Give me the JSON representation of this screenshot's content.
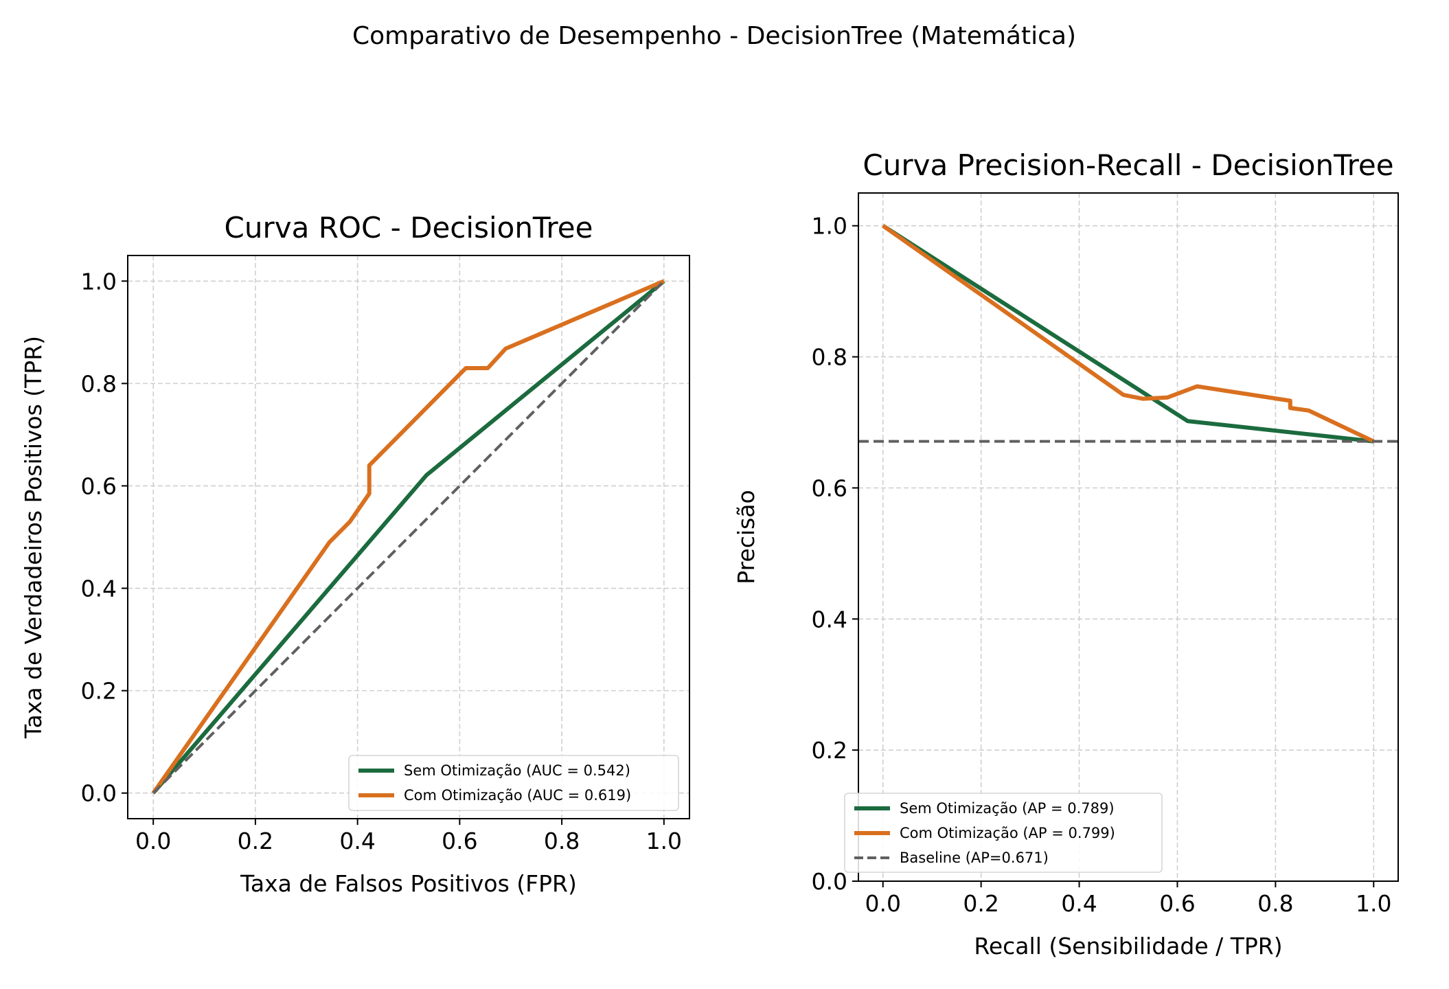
{
  "suptitle": "Comparativo de Desempenho - DecisionTree (Matemática)",
  "colors": {
    "sem": "#1b6b3e",
    "com": "#d9701f",
    "baseline": "#606060",
    "grid": "#cfcfcf"
  },
  "chart_data": [
    {
      "type": "line",
      "title": "Curva ROC - DecisionTree",
      "xlabel": "Taxa de Falsos Positivos (FPR)",
      "ylabel": "Taxa de Verdadeiros Positivos (TPR)",
      "xlim": [
        -0.05,
        1.05
      ],
      "ylim": [
        -0.05,
        1.05
      ],
      "xticks": [
        0.0,
        0.2,
        0.4,
        0.6,
        0.8,
        1.0
      ],
      "yticks": [
        0.0,
        0.2,
        0.4,
        0.6,
        0.8,
        1.0
      ],
      "xtick_labels": [
        "0.0",
        "0.2",
        "0.4",
        "0.6",
        "0.8",
        "1.0"
      ],
      "ytick_labels": [
        "0.0",
        "0.2",
        "0.4",
        "0.6",
        "0.8",
        "1.0"
      ],
      "grid": true,
      "legend_position": "lower-right",
      "series": [
        {
          "name": "Sem Otimização (AUC = 0.542)",
          "color": "#1b6b3e",
          "style": "solid",
          "x": [
            0.0,
            0.535,
            1.0
          ],
          "y": [
            0.0,
            0.621,
            1.0
          ]
        },
        {
          "name": "Com Otimização (AUC = 0.619)",
          "color": "#d9701f",
          "style": "solid",
          "x": [
            0.0,
            0.345,
            0.385,
            0.423,
            0.423,
            0.612,
            0.655,
            0.69,
            1.0
          ],
          "y": [
            0.0,
            0.49,
            0.53,
            0.585,
            0.64,
            0.83,
            0.83,
            0.868,
            1.0
          ]
        },
        {
          "name": "",
          "color": "#606060",
          "style": "dashed",
          "x": [
            0.0,
            1.0
          ],
          "y": [
            0.0,
            1.0
          ]
        }
      ]
    },
    {
      "type": "line",
      "title": "Curva Precision-Recall - DecisionTree",
      "xlabel": "Recall (Sensibilidade / TPR)",
      "ylabel": "Precisão",
      "xlim": [
        -0.05,
        1.05
      ],
      "ylim": [
        0.0,
        1.05
      ],
      "xticks": [
        0.0,
        0.2,
        0.4,
        0.6,
        0.8,
        1.0
      ],
      "yticks": [
        0.0,
        0.2,
        0.4,
        0.6,
        0.8,
        1.0
      ],
      "xtick_labels": [
        "0.0",
        "0.2",
        "0.4",
        "0.6",
        "0.8",
        "1.0"
      ],
      "ytick_labels": [
        "0.0",
        "0.2",
        "0.4",
        "0.6",
        "0.8",
        "1.0"
      ],
      "grid": true,
      "legend_position": "lower-left",
      "series": [
        {
          "name": "Sem Otimização (AP = 0.789)",
          "color": "#1b6b3e",
          "style": "solid",
          "x": [
            0.0,
            0.621,
            1.0
          ],
          "y": [
            1.0,
            0.702,
            0.671
          ]
        },
        {
          "name": "Com Otimização (AP = 0.799)",
          "color": "#d9701f",
          "style": "solid",
          "x": [
            0.0,
            0.49,
            0.53,
            0.58,
            0.64,
            0.83,
            0.83,
            0.868,
            1.0
          ],
          "y": [
            1.0,
            0.742,
            0.736,
            0.738,
            0.755,
            0.733,
            0.722,
            0.718,
            0.671
          ]
        },
        {
          "name": "Baseline (AP=0.671)",
          "color": "#606060",
          "style": "dashed",
          "hline": 0.671
        }
      ]
    }
  ]
}
